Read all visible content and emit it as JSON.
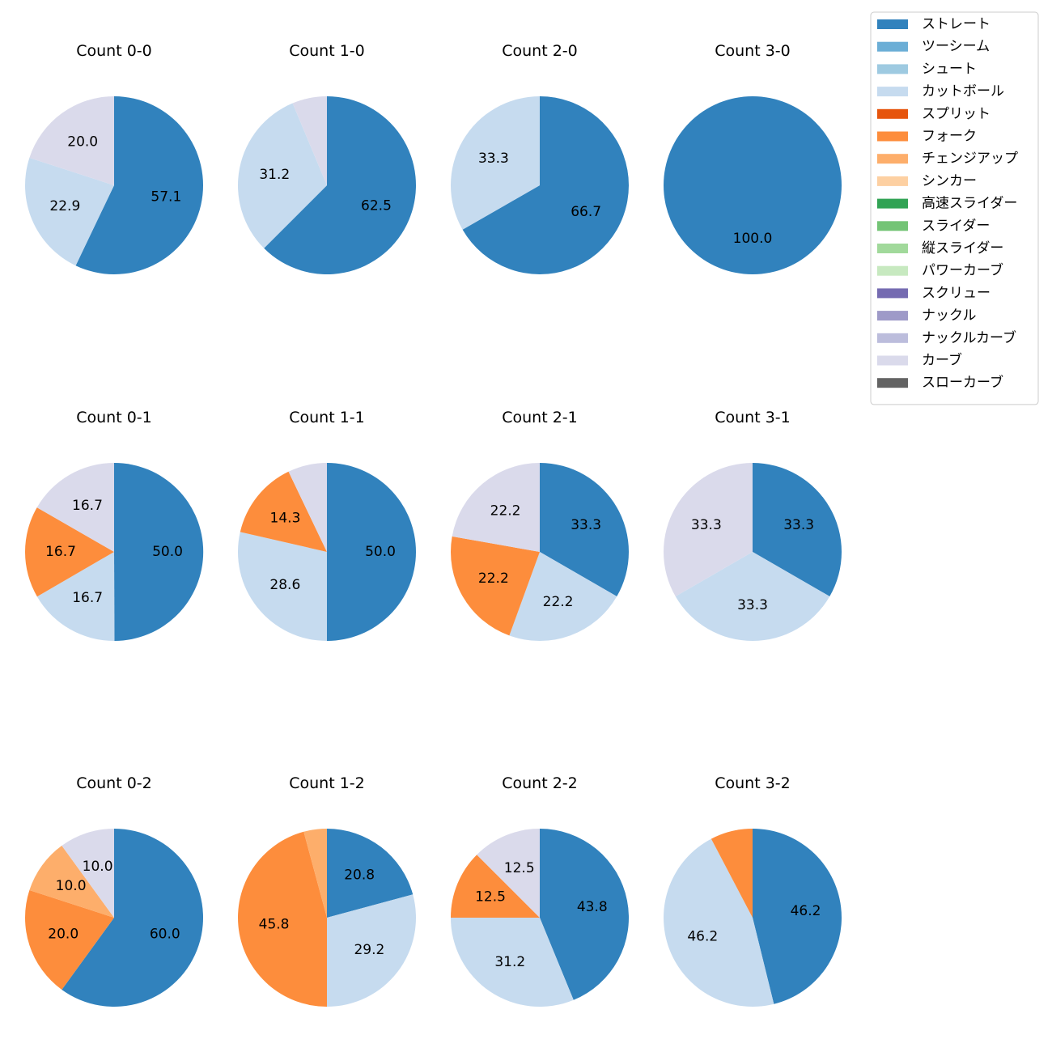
{
  "chart_data": {
    "type": "pie",
    "legend": {
      "placement": "top-right",
      "entries": [
        {
          "name": "ストレート",
          "color": "#3182bd"
        },
        {
          "name": "ツーシーム",
          "color": "#6baed6"
        },
        {
          "name": "シュート",
          "color": "#9ecae1"
        },
        {
          "name": "カットボール",
          "color": "#c6dbef"
        },
        {
          "name": "スプリット",
          "color": "#e6550d"
        },
        {
          "name": "フォーク",
          "color": "#fd8d3c"
        },
        {
          "name": "チェンジアップ",
          "color": "#fdae6b"
        },
        {
          "name": "シンカー",
          "color": "#fdd0a2"
        },
        {
          "name": "高速スライダー",
          "color": "#31a354"
        },
        {
          "name": "スライダー",
          "color": "#74c476"
        },
        {
          "name": "縦スライダー",
          "color": "#a1d99b"
        },
        {
          "name": "パワーカーブ",
          "color": "#c7e9c0"
        },
        {
          "name": "スクリュー",
          "color": "#756bb1"
        },
        {
          "name": "ナックル",
          "color": "#9e9ac8"
        },
        {
          "name": "ナックルカーブ",
          "color": "#bcbddc"
        },
        {
          "name": "カーブ",
          "color": "#dadaeb"
        },
        {
          "name": "スローカーブ",
          "color": "#636363"
        }
      ]
    },
    "pies": [
      {
        "title": "Count 0-0",
        "slices": [
          {
            "type": "ストレート",
            "value": 57.1,
            "label": "57.1"
          },
          {
            "type": "カットボール",
            "value": 22.9,
            "label": "22.9"
          },
          {
            "type": "カーブ",
            "value": 20.0,
            "label": "20.0"
          }
        ]
      },
      {
        "title": "Count 1-0",
        "slices": [
          {
            "type": "ストレート",
            "value": 62.5,
            "label": "62.5"
          },
          {
            "type": "カットボール",
            "value": 31.2,
            "label": "31.2"
          },
          {
            "type": "カーブ",
            "value": 6.3,
            "label": ""
          }
        ]
      },
      {
        "title": "Count 2-0",
        "slices": [
          {
            "type": "ストレート",
            "value": 66.7,
            "label": "66.7"
          },
          {
            "type": "カットボール",
            "value": 33.3,
            "label": "33.3"
          }
        ]
      },
      {
        "title": "Count 3-0",
        "slices": [
          {
            "type": "ストレート",
            "value": 100.0,
            "label": "100.0"
          }
        ]
      },
      {
        "title": "Count 0-1",
        "slices": [
          {
            "type": "ストレート",
            "value": 50.0,
            "label": "50.0"
          },
          {
            "type": "カットボール",
            "value": 16.7,
            "label": "16.7"
          },
          {
            "type": "フォーク",
            "value": 16.7,
            "label": "16.7"
          },
          {
            "type": "カーブ",
            "value": 16.7,
            "label": "16.7"
          }
        ]
      },
      {
        "title": "Count 1-1",
        "slices": [
          {
            "type": "ストレート",
            "value": 50.0,
            "label": "50.0"
          },
          {
            "type": "カットボール",
            "value": 28.6,
            "label": "28.6"
          },
          {
            "type": "フォーク",
            "value": 14.3,
            "label": "14.3"
          },
          {
            "type": "カーブ",
            "value": 7.1,
            "label": ""
          }
        ]
      },
      {
        "title": "Count 2-1",
        "slices": [
          {
            "type": "ストレート",
            "value": 33.3,
            "label": "33.3"
          },
          {
            "type": "カットボール",
            "value": 22.2,
            "label": "22.2"
          },
          {
            "type": "フォーク",
            "value": 22.2,
            "label": "22.2"
          },
          {
            "type": "カーブ",
            "value": 22.2,
            "label": "22.2"
          }
        ]
      },
      {
        "title": "Count 3-1",
        "slices": [
          {
            "type": "ストレート",
            "value": 33.3,
            "label": "33.3"
          },
          {
            "type": "カットボール",
            "value": 33.3,
            "label": "33.3"
          },
          {
            "type": "カーブ",
            "value": 33.3,
            "label": "33.3"
          }
        ]
      },
      {
        "title": "Count 0-2",
        "slices": [
          {
            "type": "ストレート",
            "value": 60.0,
            "label": "60.0"
          },
          {
            "type": "フォーク",
            "value": 20.0,
            "label": "20.0"
          },
          {
            "type": "チェンジアップ",
            "value": 10.0,
            "label": "10.0"
          },
          {
            "type": "カーブ",
            "value": 10.0,
            "label": "10.0"
          }
        ]
      },
      {
        "title": "Count 1-2",
        "slices": [
          {
            "type": "ストレート",
            "value": 20.8,
            "label": "20.8"
          },
          {
            "type": "カットボール",
            "value": 29.2,
            "label": "29.2"
          },
          {
            "type": "フォーク",
            "value": 45.8,
            "label": "45.8"
          },
          {
            "type": "チェンジアップ",
            "value": 4.2,
            "label": ""
          }
        ]
      },
      {
        "title": "Count 2-2",
        "slices": [
          {
            "type": "ストレート",
            "value": 43.8,
            "label": "43.8"
          },
          {
            "type": "カットボール",
            "value": 31.2,
            "label": "31.2"
          },
          {
            "type": "フォーク",
            "value": 12.5,
            "label": "12.5"
          },
          {
            "type": "カーブ",
            "value": 12.5,
            "label": "12.5"
          }
        ]
      },
      {
        "title": "Count 3-2",
        "slices": [
          {
            "type": "ストレート",
            "value": 46.2,
            "label": "46.2"
          },
          {
            "type": "カットボール",
            "value": 46.2,
            "label": "46.2"
          },
          {
            "type": "フォーク",
            "value": 7.7,
            "label": ""
          }
        ]
      }
    ]
  }
}
